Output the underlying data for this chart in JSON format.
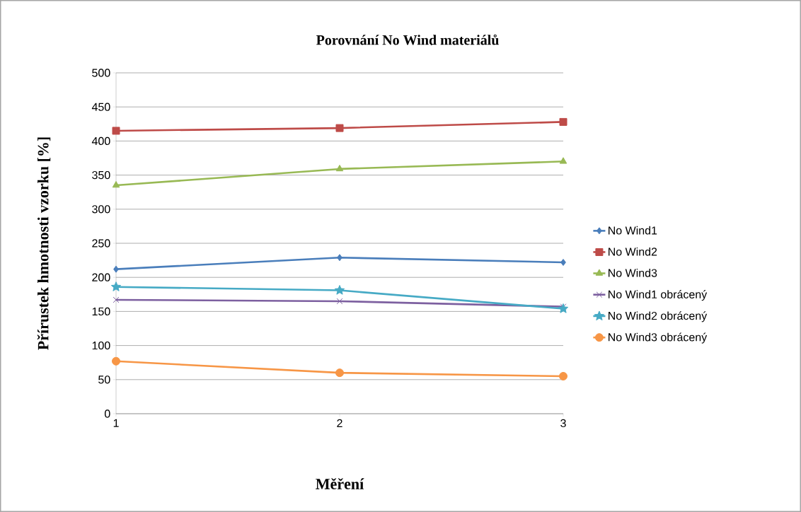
{
  "chart_data": {
    "type": "line",
    "title": "Porovnání No Wind materiálů",
    "xlabel": "Měření",
    "ylabel": "Přírustek hmotnosti vzorku [%]",
    "x": [
      1,
      2,
      3
    ],
    "xlim": [
      1,
      3
    ],
    "xticks": [
      1,
      2,
      3
    ],
    "ylim": [
      0,
      500
    ],
    "yticks": [
      0,
      50,
      100,
      150,
      200,
      250,
      300,
      350,
      400,
      450,
      500
    ],
    "grid": "y",
    "legend": "right",
    "series": [
      {
        "name": "No Wind1",
        "color": "#4a7ebb",
        "marker": "diamond",
        "values": [
          212,
          229,
          222
        ]
      },
      {
        "name": "No Wind2",
        "color": "#be4b48",
        "marker": "square",
        "values": [
          415,
          419,
          428
        ]
      },
      {
        "name": "No Wind3",
        "color": "#98b954",
        "marker": "triangle",
        "values": [
          335,
          359,
          370
        ]
      },
      {
        "name": "No Wind1 obrácený",
        "color": "#7d60a0",
        "marker": "cross",
        "values": [
          167,
          165,
          157
        ]
      },
      {
        "name": "No Wind2 obrácený",
        "color": "#46aac5",
        "marker": "star",
        "values": [
          186,
          181,
          154
        ]
      },
      {
        "name": "No Wind3 obrácený",
        "color": "#f79646",
        "marker": "circle",
        "values": [
          77,
          60,
          55
        ]
      }
    ]
  }
}
